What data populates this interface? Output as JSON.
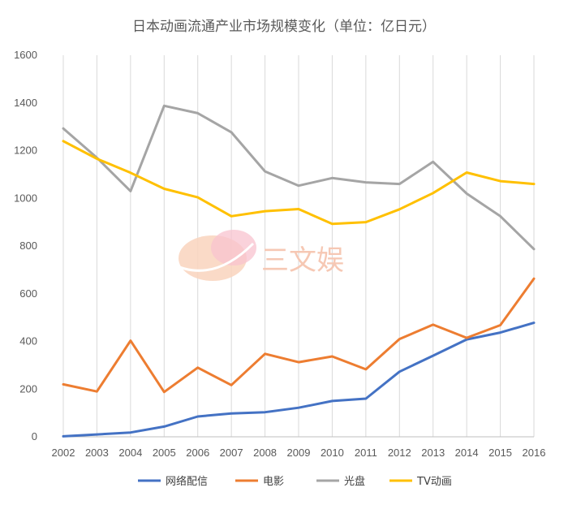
{
  "chart_data": {
    "type": "line",
    "title": "日本动画流通产业市场规模变化（单位：亿日元）",
    "categories": [
      "2002",
      "2003",
      "2004",
      "2005",
      "2006",
      "2007",
      "2008",
      "2009",
      "2010",
      "2011",
      "2012",
      "2013",
      "2014",
      "2015",
      "2016"
    ],
    "ylim": [
      0,
      1600
    ],
    "yticks": [
      0,
      200,
      400,
      600,
      800,
      1000,
      1200,
      1400,
      1600
    ],
    "grid": "vertical",
    "legend": "bottom",
    "series": [
      {
        "name": "网络配信",
        "color": "#4472c4",
        "values": [
          2,
          10,
          18,
          43,
          85,
          98,
          103,
          122,
          150,
          160,
          273,
          340,
          408,
          437,
          478
        ]
      },
      {
        "name": "电影",
        "color": "#ed7d31",
        "values": [
          220,
          190,
          403,
          188,
          290,
          217,
          348,
          313,
          337,
          283,
          410,
          470,
          415,
          468,
          663
        ]
      },
      {
        "name": "光盘",
        "color": "#a5a5a5",
        "values": [
          1293,
          1170,
          1030,
          1388,
          1357,
          1277,
          1113,
          1053,
          1085,
          1067,
          1060,
          1153,
          1020,
          925,
          787
        ]
      },
      {
        "name": "TV动画",
        "color": "#ffc000",
        "values": [
          1240,
          1166,
          1107,
          1040,
          1004,
          925,
          946,
          955,
          893,
          900,
          954,
          1022,
          1108,
          1072,
          1060
        ]
      }
    ]
  },
  "watermark": {
    "text": "三文娱",
    "color": "#f4b79c"
  }
}
